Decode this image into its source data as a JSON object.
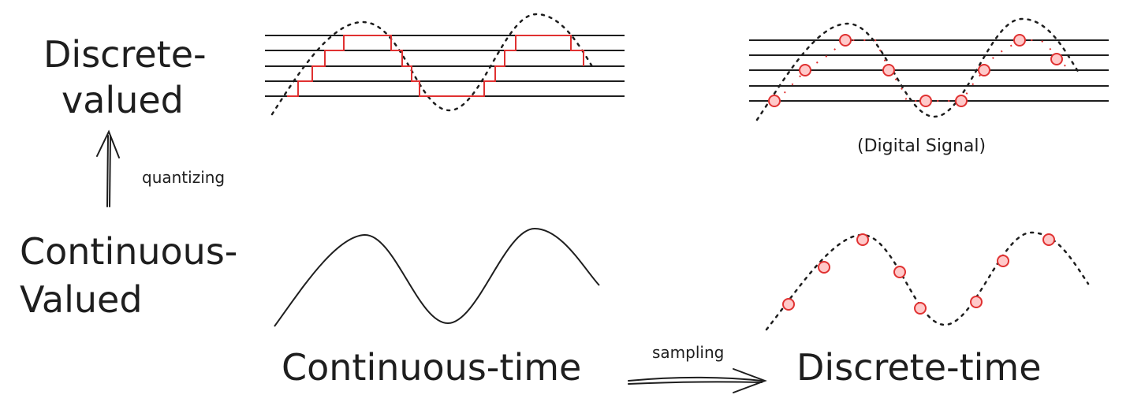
{
  "labels": {
    "discrete_valued_line1": "Discrete-",
    "discrete_valued_line2": "valued",
    "continuous_valued_line1": "Continuous-",
    "continuous_valued_line2": "Valued",
    "continuous_time": "Continuous-time",
    "discrete_time": "Discrete-time",
    "quantizing": "quantizing",
    "sampling": "sampling",
    "digital_signal": "(Digital Signal)"
  },
  "colors": {
    "ink": "#1e1e1e",
    "accent_red": "#e03131",
    "sample_fill": "#ffc9c9"
  }
}
